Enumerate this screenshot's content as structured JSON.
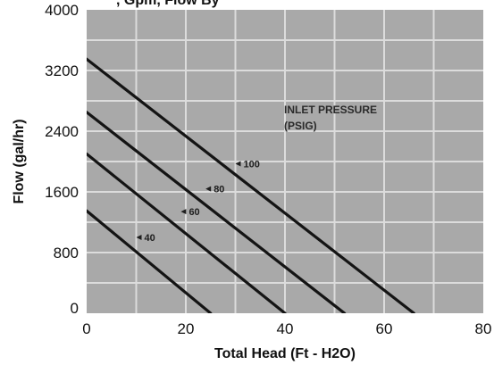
{
  "chart_data": {
    "type": "line",
    "title": ", Gpm, Flow By",
    "xlabel": "Total Head (Ft - H2O)",
    "ylabel": "Flow (gal/hr)",
    "xlim": [
      0,
      80
    ],
    "ylim": [
      0,
      4000
    ],
    "x_ticks": [
      0,
      20,
      40,
      60,
      80
    ],
    "y_ticks": [
      0,
      800,
      1600,
      2400,
      3200,
      4000
    ],
    "x_tick_labels": [
      "0",
      "20",
      "40",
      "60",
      "80"
    ],
    "y_tick_labels": [
      "0",
      "800",
      "1600",
      "2400",
      "3200",
      "4000"
    ],
    "grid": true,
    "annotation": [
      "INLET PRESSURE",
      "(PSIG)"
    ],
    "series": [
      {
        "label": "100",
        "label_point": [
          30,
          1970
        ],
        "x": [
          0,
          66
        ],
        "y": [
          3350,
          0
        ]
      },
      {
        "label": "80",
        "label_point": [
          24,
          1640
        ],
        "x": [
          0,
          52
        ],
        "y": [
          2650,
          0
        ]
      },
      {
        "label": "60",
        "label_point": [
          19,
          1340
        ],
        "x": [
          0,
          40
        ],
        "y": [
          2100,
          0
        ]
      },
      {
        "label": "40",
        "label_point": [
          10,
          1000
        ],
        "x": [
          0,
          25
        ],
        "y": [
          1350,
          0
        ]
      }
    ],
    "colors": {
      "plot_background": "#a9a9a9",
      "grid": "#dcdcdc",
      "line": "#141414"
    }
  }
}
